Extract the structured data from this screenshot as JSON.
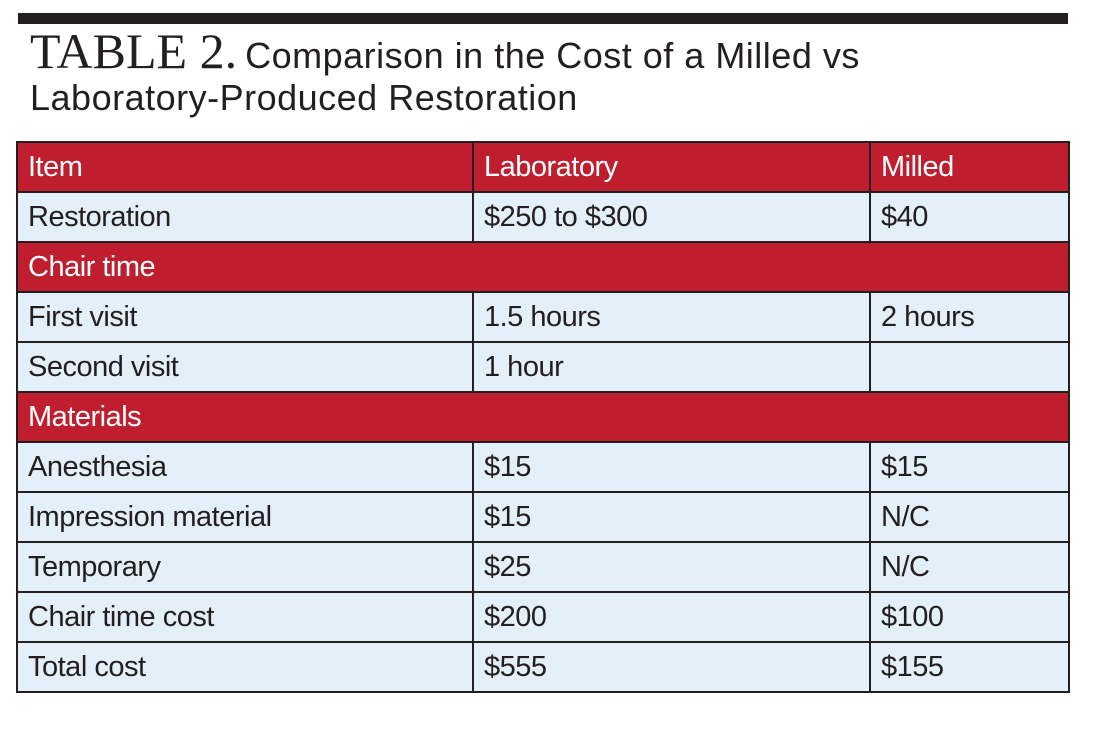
{
  "title": {
    "label": "TABLE 2.",
    "text_line1": "Comparison in the Cost of a Milled vs",
    "text_line2": "Laboratory-Produced Restoration"
  },
  "colors": {
    "header_red": "#be1e2d",
    "cell_blue": "#e3f0f9",
    "rule_dark": "#231f20"
  },
  "table": {
    "headers": [
      "Item",
      "Laboratory",
      "Milled"
    ],
    "rows": [
      {
        "type": "data",
        "cells": [
          "Restoration",
          "$250 to $300",
          "$40"
        ]
      },
      {
        "type": "section",
        "label": "Chair time"
      },
      {
        "type": "data",
        "cells": [
          "First visit",
          "1.5 hours",
          "2 hours"
        ]
      },
      {
        "type": "data",
        "cells": [
          "Second visit",
          "1 hour",
          ""
        ]
      },
      {
        "type": "section",
        "label": "Materials"
      },
      {
        "type": "data",
        "cells": [
          "Anesthesia",
          "$15",
          "$15"
        ]
      },
      {
        "type": "data",
        "cells": [
          "Impression material",
          "$15",
          "N/C"
        ]
      },
      {
        "type": "data",
        "cells": [
          "Temporary",
          "$25",
          "N/C"
        ]
      },
      {
        "type": "data",
        "cells": [
          "Chair time cost",
          "$200",
          "$100"
        ]
      },
      {
        "type": "data",
        "cells": [
          "Total cost",
          "$555",
          "$155"
        ]
      }
    ]
  }
}
